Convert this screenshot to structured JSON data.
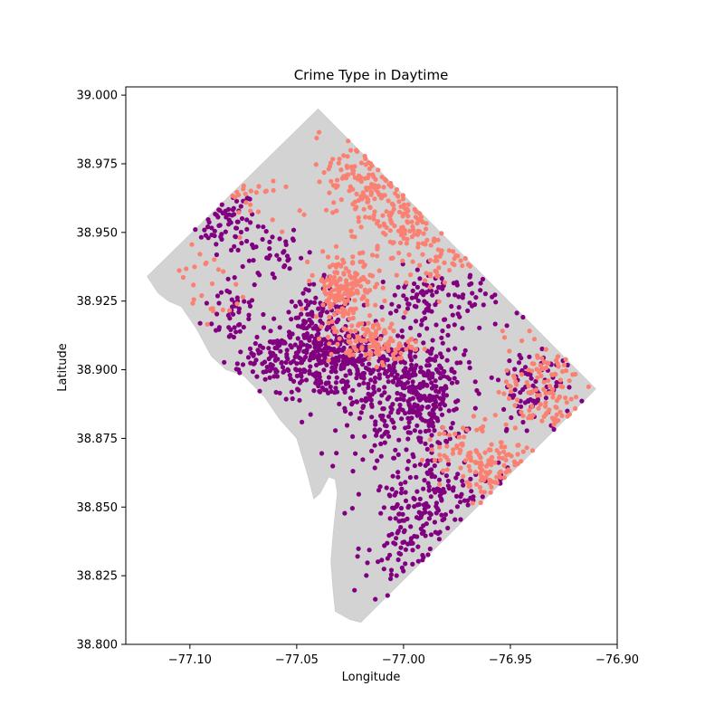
{
  "chart_data": {
    "type": "scatter",
    "title": "Crime Type in Daytime",
    "xlabel": "Longitude",
    "ylabel": "Latitude",
    "xlim": [
      -77.13,
      -76.9
    ],
    "ylim": [
      38.8,
      39.003
    ],
    "xticks": [
      -77.1,
      -77.05,
      -77.0,
      -76.95,
      -76.9
    ],
    "xtick_labels": [
      "−77.10",
      "−77.05",
      "−77.00",
      "−76.95",
      "−76.90"
    ],
    "yticks": [
      38.8,
      38.825,
      38.85,
      38.875,
      38.9,
      38.925,
      38.95,
      38.975,
      39.0
    ],
    "ytick_labels": [
      "38.800",
      "38.825",
      "38.850",
      "38.875",
      "38.900",
      "38.925",
      "38.950",
      "38.975",
      "39.000"
    ],
    "grid": false,
    "legend": "none",
    "colors": {
      "background_shape": "#d3d3d3",
      "type_a": "#800080",
      "type_b": "#fa8072"
    },
    "boundary": [
      [
        -77.04,
        38.995
      ],
      [
        -76.91,
        38.893
      ],
      [
        -77.02,
        38.808
      ],
      [
        -77.025,
        38.809
      ],
      [
        -77.032,
        38.812
      ],
      [
        -77.033,
        38.82
      ],
      [
        -77.034,
        38.83
      ],
      [
        -77.033,
        38.84
      ],
      [
        -77.032,
        38.848
      ],
      [
        -77.031,
        38.855
      ],
      [
        -77.032,
        38.86
      ],
      [
        -77.035,
        38.861
      ],
      [
        -77.039,
        38.855
      ],
      [
        -77.042,
        38.853
      ],
      [
        -77.045,
        38.862
      ],
      [
        -77.05,
        38.875
      ],
      [
        -77.058,
        38.882
      ],
      [
        -77.065,
        38.89
      ],
      [
        -77.075,
        38.898
      ],
      [
        -77.083,
        38.9
      ],
      [
        -77.09,
        38.905
      ],
      [
        -77.097,
        38.915
      ],
      [
        -77.104,
        38.923
      ],
      [
        -77.11,
        38.925
      ],
      [
        -77.115,
        38.928
      ],
      [
        -77.12,
        38.934
      ]
    ],
    "series": [
      {
        "color": "#800080",
        "clusters": [
          {
            "cx": -77.085,
            "cy": 38.955,
            "sx": 0.008,
            "sy": 0.005,
            "n": 60
          },
          {
            "cx": -77.065,
            "cy": 38.942,
            "sx": 0.009,
            "sy": 0.006,
            "n": 45
          },
          {
            "cx": -77.08,
            "cy": 38.922,
            "sx": 0.007,
            "sy": 0.006,
            "n": 40
          },
          {
            "cx": -77.06,
            "cy": 38.905,
            "sx": 0.012,
            "sy": 0.006,
            "n": 110
          },
          {
            "cx": -77.04,
            "cy": 38.91,
            "sx": 0.009,
            "sy": 0.01,
            "n": 230
          },
          {
            "cx": -77.025,
            "cy": 38.902,
            "sx": 0.012,
            "sy": 0.006,
            "n": 170
          },
          {
            "cx": -77.0,
            "cy": 38.9,
            "sx": 0.013,
            "sy": 0.007,
            "n": 190
          },
          {
            "cx": -76.99,
            "cy": 38.886,
            "sx": 0.009,
            "sy": 0.008,
            "n": 170
          },
          {
            "cx": -77.01,
            "cy": 38.88,
            "sx": 0.01,
            "sy": 0.006,
            "n": 60
          },
          {
            "cx": -76.985,
            "cy": 38.925,
            "sx": 0.014,
            "sy": 0.006,
            "n": 110
          },
          {
            "cx": -76.94,
            "cy": 38.892,
            "sx": 0.01,
            "sy": 0.01,
            "n": 90
          },
          {
            "cx": -76.985,
            "cy": 38.856,
            "sx": 0.016,
            "sy": 0.007,
            "n": 130
          },
          {
            "cx": -77.0,
            "cy": 38.835,
            "sx": 0.009,
            "sy": 0.01,
            "n": 90
          }
        ]
      },
      {
        "color": "#fa8072",
        "clusters": [
          {
            "cx": -77.02,
            "cy": 38.97,
            "sx": 0.008,
            "sy": 0.009,
            "n": 110
          },
          {
            "cx": -77.0,
            "cy": 38.955,
            "sx": 0.011,
            "sy": 0.008,
            "n": 110
          },
          {
            "cx": -77.028,
            "cy": 38.93,
            "sx": 0.007,
            "sy": 0.006,
            "n": 170
          },
          {
            "cx": -77.015,
            "cy": 38.91,
            "sx": 0.01,
            "sy": 0.004,
            "n": 120
          },
          {
            "cx": -76.985,
            "cy": 38.94,
            "sx": 0.01,
            "sy": 0.006,
            "n": 50
          },
          {
            "cx": -77.075,
            "cy": 38.963,
            "sx": 0.008,
            "sy": 0.005,
            "n": 25
          },
          {
            "cx": -77.095,
            "cy": 38.93,
            "sx": 0.01,
            "sy": 0.01,
            "n": 25
          },
          {
            "cx": -76.935,
            "cy": 38.893,
            "sx": 0.009,
            "sy": 0.01,
            "n": 120
          },
          {
            "cx": -76.965,
            "cy": 38.87,
            "sx": 0.012,
            "sy": 0.006,
            "n": 100
          },
          {
            "cx": -76.955,
            "cy": 38.86,
            "sx": 0.008,
            "sy": 0.005,
            "n": 40
          }
        ]
      }
    ]
  }
}
